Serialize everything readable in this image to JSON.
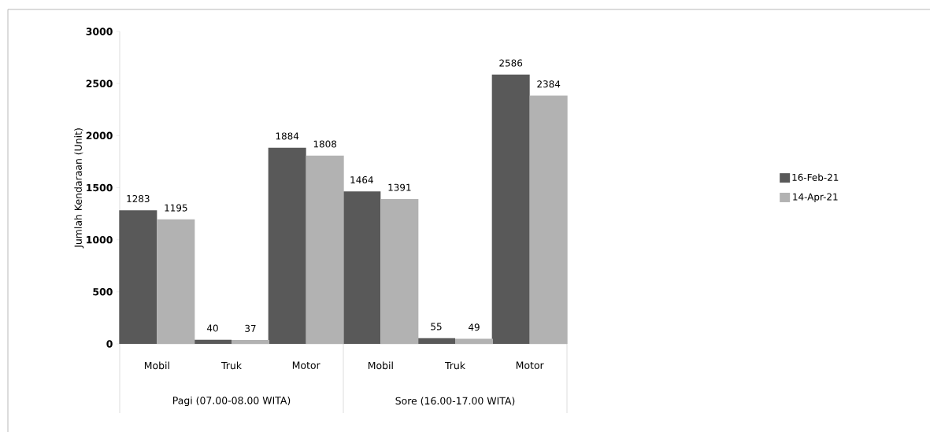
{
  "chart_data": {
    "type": "bar",
    "ylabel": "Jumlah Kendaraan (Unit)",
    "categories": [
      "Mobil",
      "Truk",
      "Motor",
      "Mobil",
      "Truk",
      "Motor"
    ],
    "annotations": [
      "Pagi (07.00-08.00 WITA)",
      "Sore (16.00-17.00 WITA)"
    ],
    "series": [
      {
        "name": "16-Feb-21",
        "color": "#595959",
        "values": [
          1283,
          40,
          1884,
          1464,
          55,
          2586
        ]
      },
      {
        "name": "14-Apr-21",
        "color": "#b2b2b2",
        "values": [
          1195,
          37,
          1808,
          1391,
          49,
          2384
        ]
      }
    ],
    "ylim": [
      0,
      3000
    ],
    "yticks": [
      0,
      500,
      1000,
      1500,
      2000,
      2500,
      3000
    ],
    "data_labels": true,
    "grid": false,
    "legend": "right"
  }
}
